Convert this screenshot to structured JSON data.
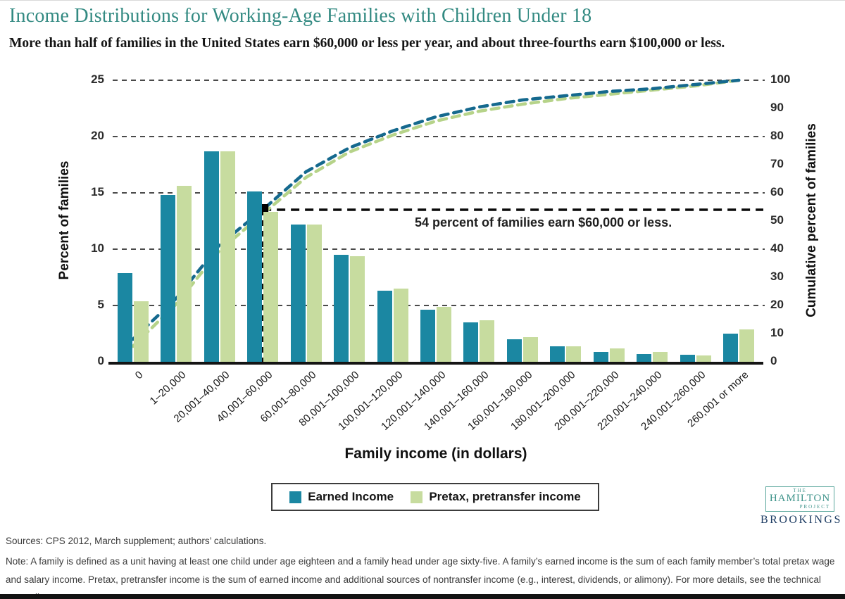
{
  "chart_data": {
    "type": "bar",
    "subtype": "grouped bars with cumulative dashed line overlay, dual y-axes",
    "title": "Income Distributions for Working-Age Families with Children Under 18",
    "subtitle": "More than half of families in the United States earn $60,000 or less per year, and about three-fourths earn $100,000 or less.",
    "categories": [
      "0",
      "1–20,000",
      "20,001–40,000",
      "40,001–60,000",
      "60,001–80,000",
      "80,001–100,000",
      "100,001–120,000",
      "120,001–140,000",
      "140,001–160,000",
      "160,001–180,000",
      "180,001–200,000",
      "200,001–220,000",
      "220,001–240,000",
      "240,001–260,000",
      "260,001 or more"
    ],
    "bar_series": [
      {
        "name": "Earned Income",
        "color": "#1b87a2",
        "values": [
          7.9,
          14.8,
          18.7,
          15.1,
          12.2,
          9.5,
          6.3,
          4.6,
          3.5,
          2.0,
          1.4,
          0.9,
          0.7,
          0.6,
          2.5
        ]
      },
      {
        "name": "Pretax, pretransfer income",
        "color": "#c7dc9f",
        "values": [
          5.4,
          15.6,
          18.7,
          13.3,
          12.2,
          9.4,
          6.5,
          4.9,
          3.7,
          2.2,
          1.4,
          1.2,
          0.9,
          0.55,
          2.9
        ]
      }
    ],
    "line_series": [
      {
        "name": "Pretax, pretransfer income (cumulative)",
        "color": "#b6d389",
        "axis": "right",
        "values": [
          5.5,
          20.5,
          39.5,
          52.5,
          65.5,
          74.5,
          80.5,
          85.5,
          89,
          91.5,
          93.5,
          95,
          96.5,
          98,
          100
        ]
      },
      {
        "name": "Earned Income (cumulative)",
        "color": "#15698e",
        "axis": "right",
        "values": [
          8,
          22.5,
          41.5,
          54,
          67.5,
          76,
          82,
          87,
          90.5,
          93,
          94.5,
          96,
          97,
          98.5,
          100
        ]
      }
    ],
    "xlabel": "Family income (in dollars)",
    "ylabel_left": "Percent of families",
    "ylabel_right": "Cumulative percent of families",
    "ylim_left": [
      0,
      25
    ],
    "ylim_right": [
      0,
      100
    ],
    "yticks_left": [
      0,
      5,
      10,
      15,
      20,
      25
    ],
    "yticks_right": [
      0,
      10,
      20,
      30,
      40,
      50,
      60,
      70,
      80,
      90,
      100
    ],
    "gridlines_left_values": [
      5,
      10,
      15,
      20,
      25
    ],
    "grid_style": "horizontal dashed gray",
    "legend": {
      "position": "bottom",
      "entries": [
        "Earned Income",
        "Pretax, pretransfer income"
      ]
    },
    "annotation": {
      "text": "54 percent of families earn $60,000 or less.",
      "category": "40,001–60,000",
      "cumulative_percent": 54,
      "marker": "black square with dashed black horizontal and vertical reference lines"
    }
  },
  "footer": {
    "sources": "Sources: CPS 2012, March supplement; authors’ calculations.",
    "note": "Note: A family is defined as a unit having at least one child under age eighteen and a family head under age sixty-five. A family’s earned income is the sum of each family member’s total pretax wage and salary income. Pretax, pretransfer income is the sum of earned income and additional sources of nontransfer income (e.g., interest, dividends, or alimony). For more details, see the technical appendix."
  },
  "logo": {
    "the": "THE",
    "hamilton": "HAMILTON",
    "project": "PROJECT",
    "brookings": "BROOKINGS"
  }
}
